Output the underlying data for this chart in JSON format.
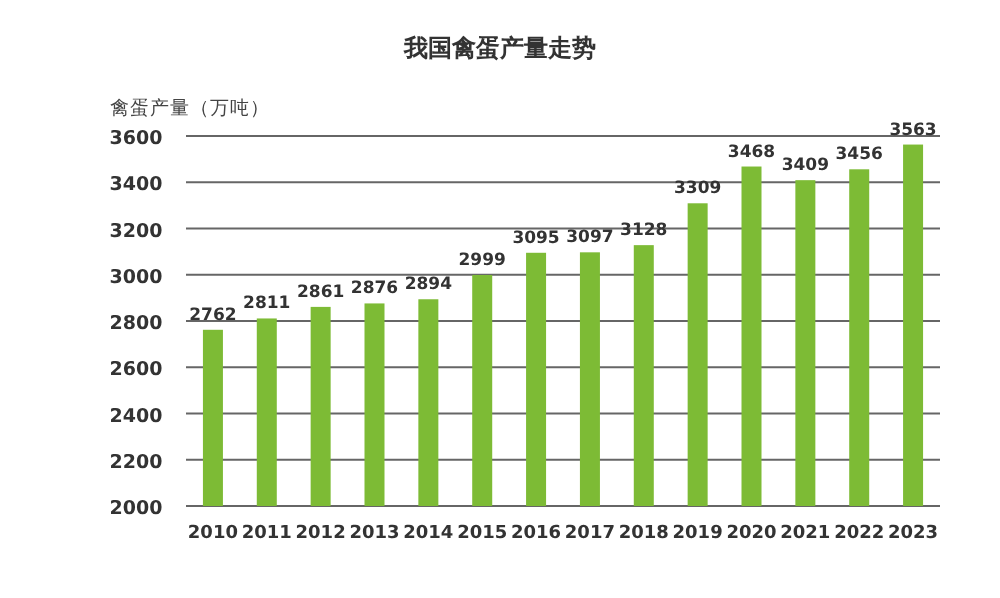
{
  "chart_data": {
    "type": "bar",
    "title": "我国禽蛋产量走势",
    "ylabel": "禽蛋产量（万吨）",
    "categories": [
      "2010",
      "2011",
      "2012",
      "2013",
      "2014",
      "2015",
      "2016",
      "2017",
      "2018",
      "2019",
      "2020",
      "2021",
      "2022",
      "2023"
    ],
    "values": [
      2762,
      2811,
      2861,
      2876,
      2894,
      2999,
      3095,
      3097,
      3128,
      3309,
      3468,
      3409,
      3456,
      3563
    ],
    "color": "#7dbb35",
    "ylim": [
      2000,
      3600
    ],
    "yticks": [
      2000,
      2200,
      2400,
      2600,
      2800,
      3000,
      3200,
      3400,
      3600
    ],
    "grid": "y",
    "data_labels": true
  }
}
